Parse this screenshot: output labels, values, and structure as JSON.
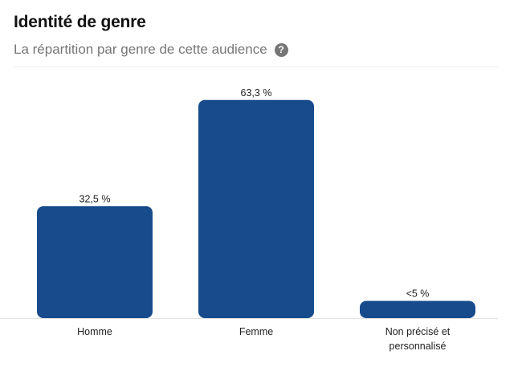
{
  "header": {
    "title": "Identité de genre",
    "subtitle": "La répartition par genre de cette audience",
    "help_icon": "question-circle-icon"
  },
  "colors": {
    "bar": "#174b8c",
    "axis": "#e3e3e3"
  },
  "chart_data": {
    "type": "bar",
    "title": "Identité de genre",
    "subtitle": "La répartition par genre de cette audience",
    "categories": [
      [
        "Homme"
      ],
      [
        "Femme"
      ],
      [
        "Non précisé et",
        "personnalisé"
      ]
    ],
    "values": [
      32.5,
      63.3,
      5
    ],
    "value_labels": [
      "32,5 %",
      "63,3 %",
      "<5 %"
    ],
    "ylim": [
      0,
      70
    ],
    "grid": false,
    "legend": "none"
  }
}
